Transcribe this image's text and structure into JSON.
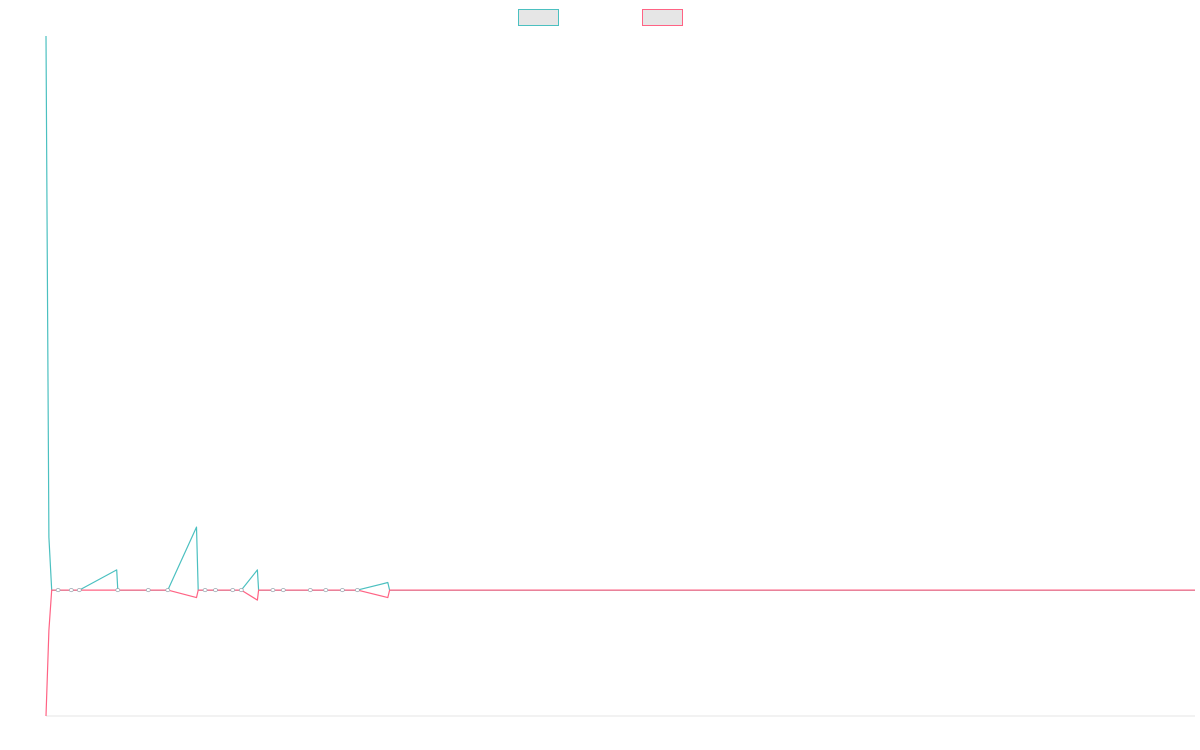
{
  "chart_data": {
    "type": "line",
    "title": "",
    "xlabel": "",
    "ylabel": "",
    "grid": false,
    "legend": {
      "position": "top-center",
      "entries": [
        {
          "name": "",
          "color": "#4bc0c0"
        },
        {
          "name": "",
          "color": "#ff6384"
        }
      ]
    },
    "ylim": [
      -25,
      110
    ],
    "xlim": [
      0,
      1000
    ],
    "baseline": 0,
    "series": [
      {
        "name": "",
        "color": "#4bc0c0",
        "points": [
          [
            0,
            110
          ],
          [
            2.5,
            10.5
          ],
          [
            5,
            0
          ],
          [
            10.5,
            0
          ],
          [
            22,
            0
          ],
          [
            29,
            0
          ],
          [
            61.5,
            4
          ],
          [
            62.5,
            0
          ],
          [
            89,
            0
          ],
          [
            106,
            0
          ],
          [
            131,
            12.5
          ],
          [
            132.5,
            0
          ],
          [
            138.5,
            0
          ],
          [
            147.5,
            0
          ],
          [
            162.5,
            0
          ],
          [
            170,
            0
          ],
          [
            184,
            4
          ],
          [
            185,
            0
          ],
          [
            197.5,
            0
          ],
          [
            206.5,
            0
          ],
          [
            230,
            0
          ],
          [
            243.5,
            0
          ],
          [
            258,
            0
          ],
          [
            271,
            0
          ],
          [
            297.5,
            1.5
          ],
          [
            299,
            0
          ],
          [
            1000,
            0
          ]
        ]
      },
      {
        "name": "",
        "color": "#ff6384",
        "points": [
          [
            0,
            -25
          ],
          [
            2.5,
            -8
          ],
          [
            5,
            0
          ],
          [
            10.5,
            0
          ],
          [
            22,
            0
          ],
          [
            29,
            0
          ],
          [
            61.5,
            0
          ],
          [
            89,
            0
          ],
          [
            106,
            0
          ],
          [
            131,
            -1.5
          ],
          [
            132.5,
            0
          ],
          [
            138.5,
            0
          ],
          [
            147.5,
            0
          ],
          [
            162.5,
            0
          ],
          [
            170,
            0
          ],
          [
            184,
            -2
          ],
          [
            185,
            0
          ],
          [
            197.5,
            0
          ],
          [
            206.5,
            0
          ],
          [
            230,
            0
          ],
          [
            243.5,
            0
          ],
          [
            258,
            0
          ],
          [
            271,
            0
          ],
          [
            297.5,
            -1.5
          ],
          [
            299,
            0
          ],
          [
            1000,
            0
          ]
        ]
      }
    ],
    "markers": [
      10.5,
      22,
      29,
      62.5,
      89,
      106,
      138.5,
      147.5,
      162.5,
      170,
      197.5,
      206.5,
      230,
      243.5,
      258,
      271
    ]
  }
}
